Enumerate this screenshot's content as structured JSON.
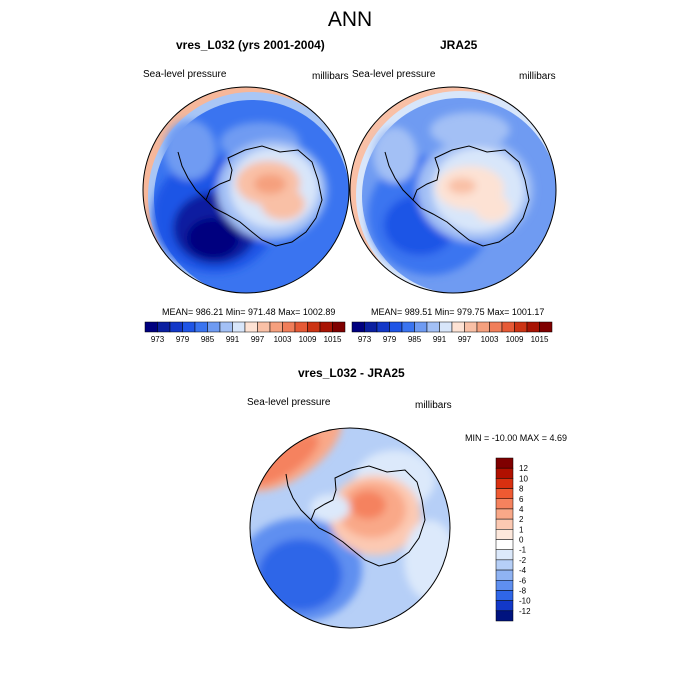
{
  "main_title": "ANN",
  "panels": [
    {
      "title": "vres_L032 (yrs 2001-2004)",
      "left_label": "Sea-level pressure",
      "right_label": "millibars",
      "stats": "MEAN= 986.21   Min= 971.48   Max= 1002.89"
    },
    {
      "title": "JRA25",
      "left_label": "Sea-level pressure",
      "right_label": "millibars",
      "stats": "MEAN= 989.51   Min= 979.75   Max= 1001.17"
    },
    {
      "title": "vres_L032 - JRA25",
      "left_label": "Sea-level pressure",
      "right_label": "millibars",
      "stats": "MIN = -10.00 MAX =   4.69"
    }
  ],
  "colorbar_horizontal": {
    "labels": [
      "973",
      "979",
      "985",
      "991",
      "997",
      "1003",
      "1009",
      "1015"
    ],
    "colors": [
      "#00007f",
      "#0a1fa0",
      "#1338c8",
      "#1f55e6",
      "#3a74f0",
      "#6f9bf2",
      "#a3c0f5",
      "#d8e6fa",
      "#fde2d4",
      "#f9c0a6",
      "#f5a07e",
      "#f07e5a",
      "#e65a36",
      "#cc3414",
      "#a81404",
      "#7f0000"
    ]
  },
  "colorbar_vertical": {
    "labels": [
      "12",
      "10",
      "8",
      "6",
      "4",
      "2",
      "1",
      "0",
      "-1",
      "-2",
      "-4",
      "-6",
      "-8",
      "-10",
      "-12"
    ],
    "colors": [
      "#7f0000",
      "#b01000",
      "#d83010",
      "#ef5a32",
      "#f5825e",
      "#f9a888",
      "#fcc9b2",
      "#fde8dc",
      "#ffffff",
      "#dce9fb",
      "#b6cff7",
      "#8fb3f3",
      "#5f8ff0",
      "#2f66e8",
      "#1238c8",
      "#00137f"
    ]
  }
}
